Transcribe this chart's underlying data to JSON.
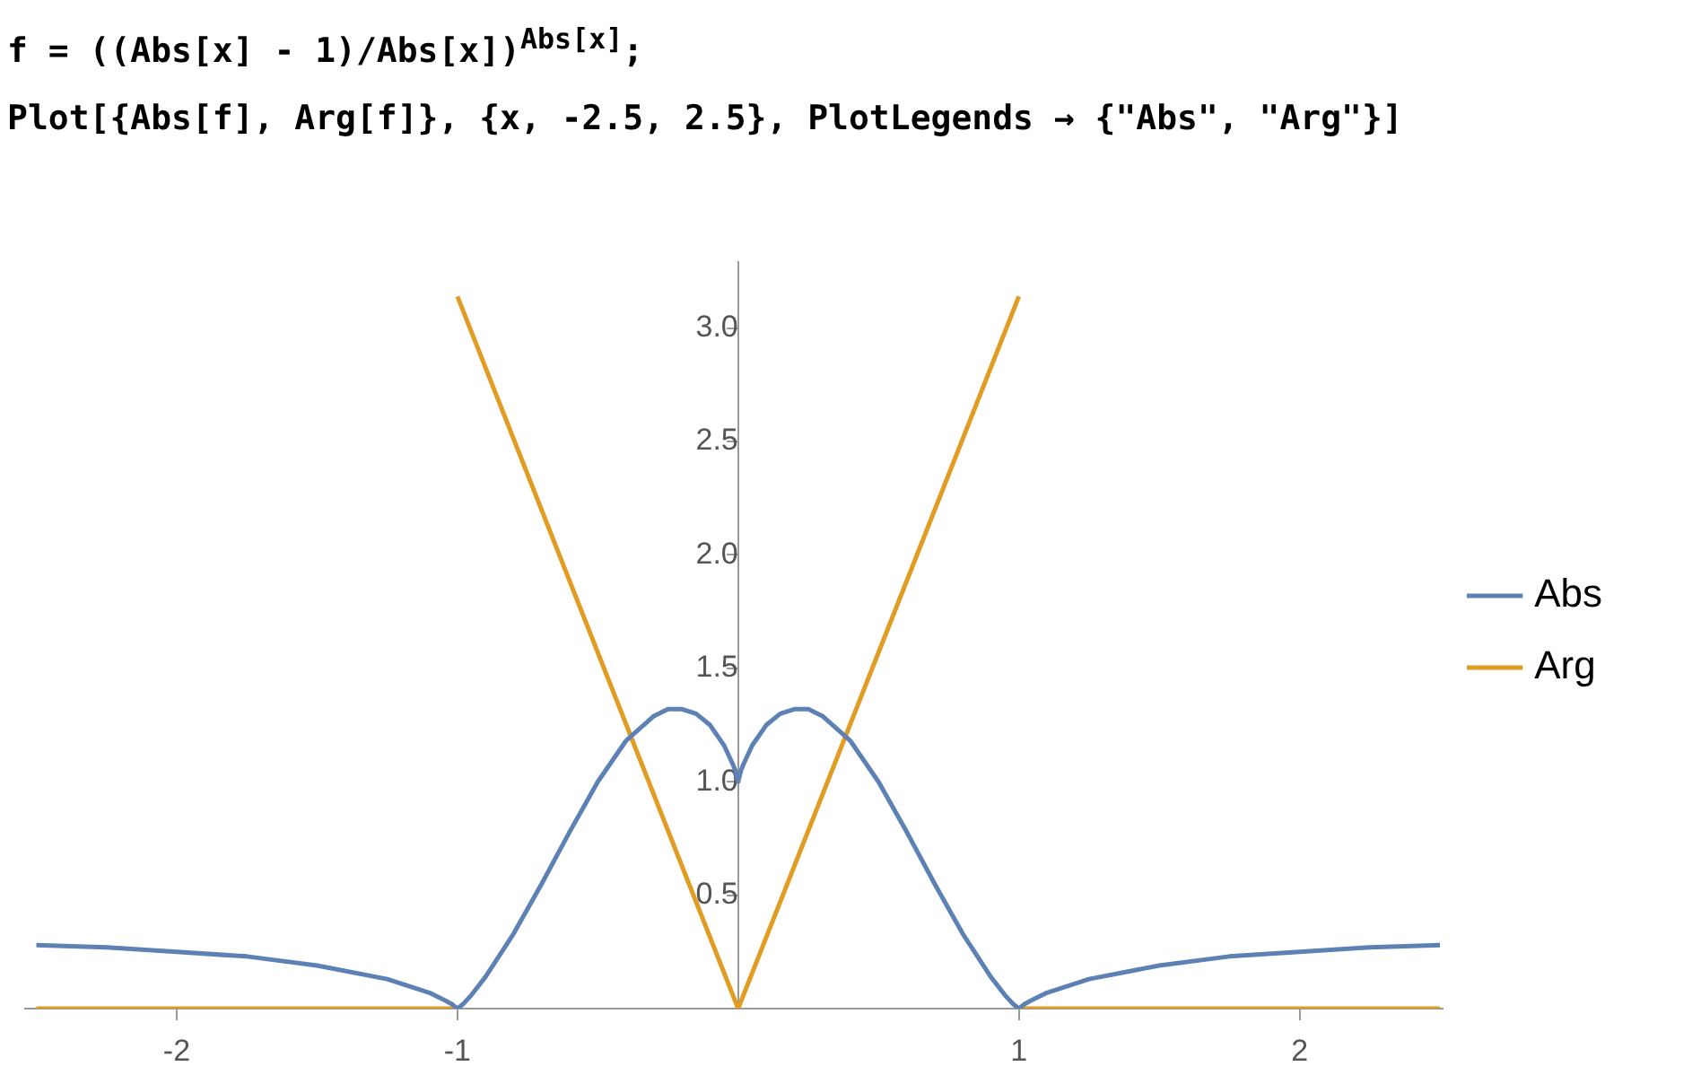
{
  "chart_data": {
    "type": "line",
    "annotations": [
      "f = ((Abs[x] - 1)/Abs[x])$^{Abs[x]}$;",
      "Plot[{Abs[f], Arg[f]}, {x, -2.5, 2.5}, PlotLegends → {\"Abs\", \"Arg\"}]"
    ],
    "series": [
      {
        "name": "Abs",
        "color": "#5e81b5",
        "x": [
          -2.5,
          -2.25,
          -2,
          -1.75,
          -1.5,
          -1.25,
          -1.1,
          -1.05,
          -1.02,
          -1,
          -0.98,
          -0.95,
          -0.9,
          -0.8,
          -0.7,
          -0.6,
          -0.5,
          -0.4,
          -0.3,
          -0.25,
          -0.2,
          -0.15,
          -0.1,
          -0.05,
          -0.02,
          -0.01,
          0,
          0.01,
          0.02,
          0.05,
          0.1,
          0.15,
          0.2,
          0.25,
          0.3,
          0.4,
          0.5,
          0.6,
          0.7,
          0.8,
          0.9,
          0.95,
          0.98,
          1,
          1.02,
          1.05,
          1.1,
          1.25,
          1.5,
          1.75,
          2,
          2.25,
          2.5
        ],
        "values": [
          0.28,
          0.27,
          0.25,
          0.23,
          0.19,
          0.13,
          0.07,
          0.04,
          0.02,
          0,
          0.02,
          0.06,
          0.14,
          0.33,
          0.55,
          0.78,
          1,
          1.18,
          1.29,
          1.32,
          1.32,
          1.3,
          1.25,
          1.16,
          1.08,
          1.05,
          1,
          1.05,
          1.08,
          1.16,
          1.25,
          1.3,
          1.32,
          1.32,
          1.29,
          1.18,
          1,
          0.78,
          0.55,
          0.33,
          0.14,
          0.06,
          0.02,
          0,
          0.02,
          0.04,
          0.07,
          0.13,
          0.19,
          0.23,
          0.25,
          0.27,
          0.28
        ]
      },
      {
        "name": "Arg",
        "color": "#e19c24",
        "x": [
          -2.5,
          -1,
          null,
          -1,
          0,
          1,
          null,
          1,
          2.5
        ],
        "values": [
          0,
          0,
          null,
          3.14,
          0,
          3.14,
          null,
          0,
          0
        ]
      }
    ],
    "xlim": [
      -2.54,
      2.51
    ],
    "ylim": [
      0,
      3.29
    ],
    "xticks": [
      -2,
      -1,
      1,
      2
    ],
    "yticks": [
      0.5,
      {
        "value": 1,
        "label": "1.0"
      },
      1.5,
      {
        "value": 2,
        "label": "2.0"
      },
      2.5,
      {
        "value": 3,
        "label": "3.0"
      }
    ],
    "grid": false,
    "legend": "right",
    "marker": "none",
    "line_style": "solid"
  }
}
